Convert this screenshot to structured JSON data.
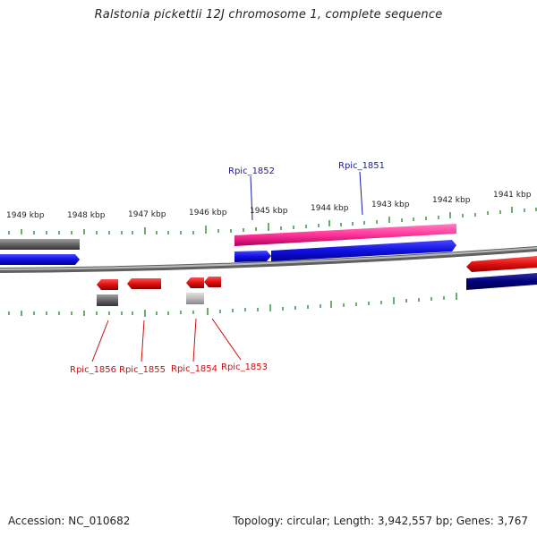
{
  "title": "Ralstonia pickettii 12J chromosome 1, complete sequence",
  "footer": {
    "accession": "Accession: NC_010682",
    "topology": "Topology: circular; Length: 3,942,557 bp; Genes: 3,767"
  },
  "kbp_labels": [
    "1949 kbp",
    "1948 kbp",
    "1947 kbp",
    "1946 kbp",
    "1945 kbp",
    "1944 kbp",
    "1943 kbp",
    "1942 kbp",
    "1941 kbp"
  ],
  "genes_upper": [
    "Rpic_1852",
    "Rpic_1851"
  ],
  "genes_lower": [
    "Rpic_1856",
    "Rpic_1855",
    "Rpic_1854",
    "Rpic_1853"
  ],
  "colors": {
    "backbone": "#8a8a8a",
    "tick": "#2e8b2e",
    "forward_gene": "#1010e0",
    "reverse_gene": "#e01010",
    "rna_gene": "#ff3399",
    "pseudo": "#666666",
    "navy": "#000080",
    "upper_label": "#1a1aa8",
    "lower_label": "#cc1010"
  }
}
